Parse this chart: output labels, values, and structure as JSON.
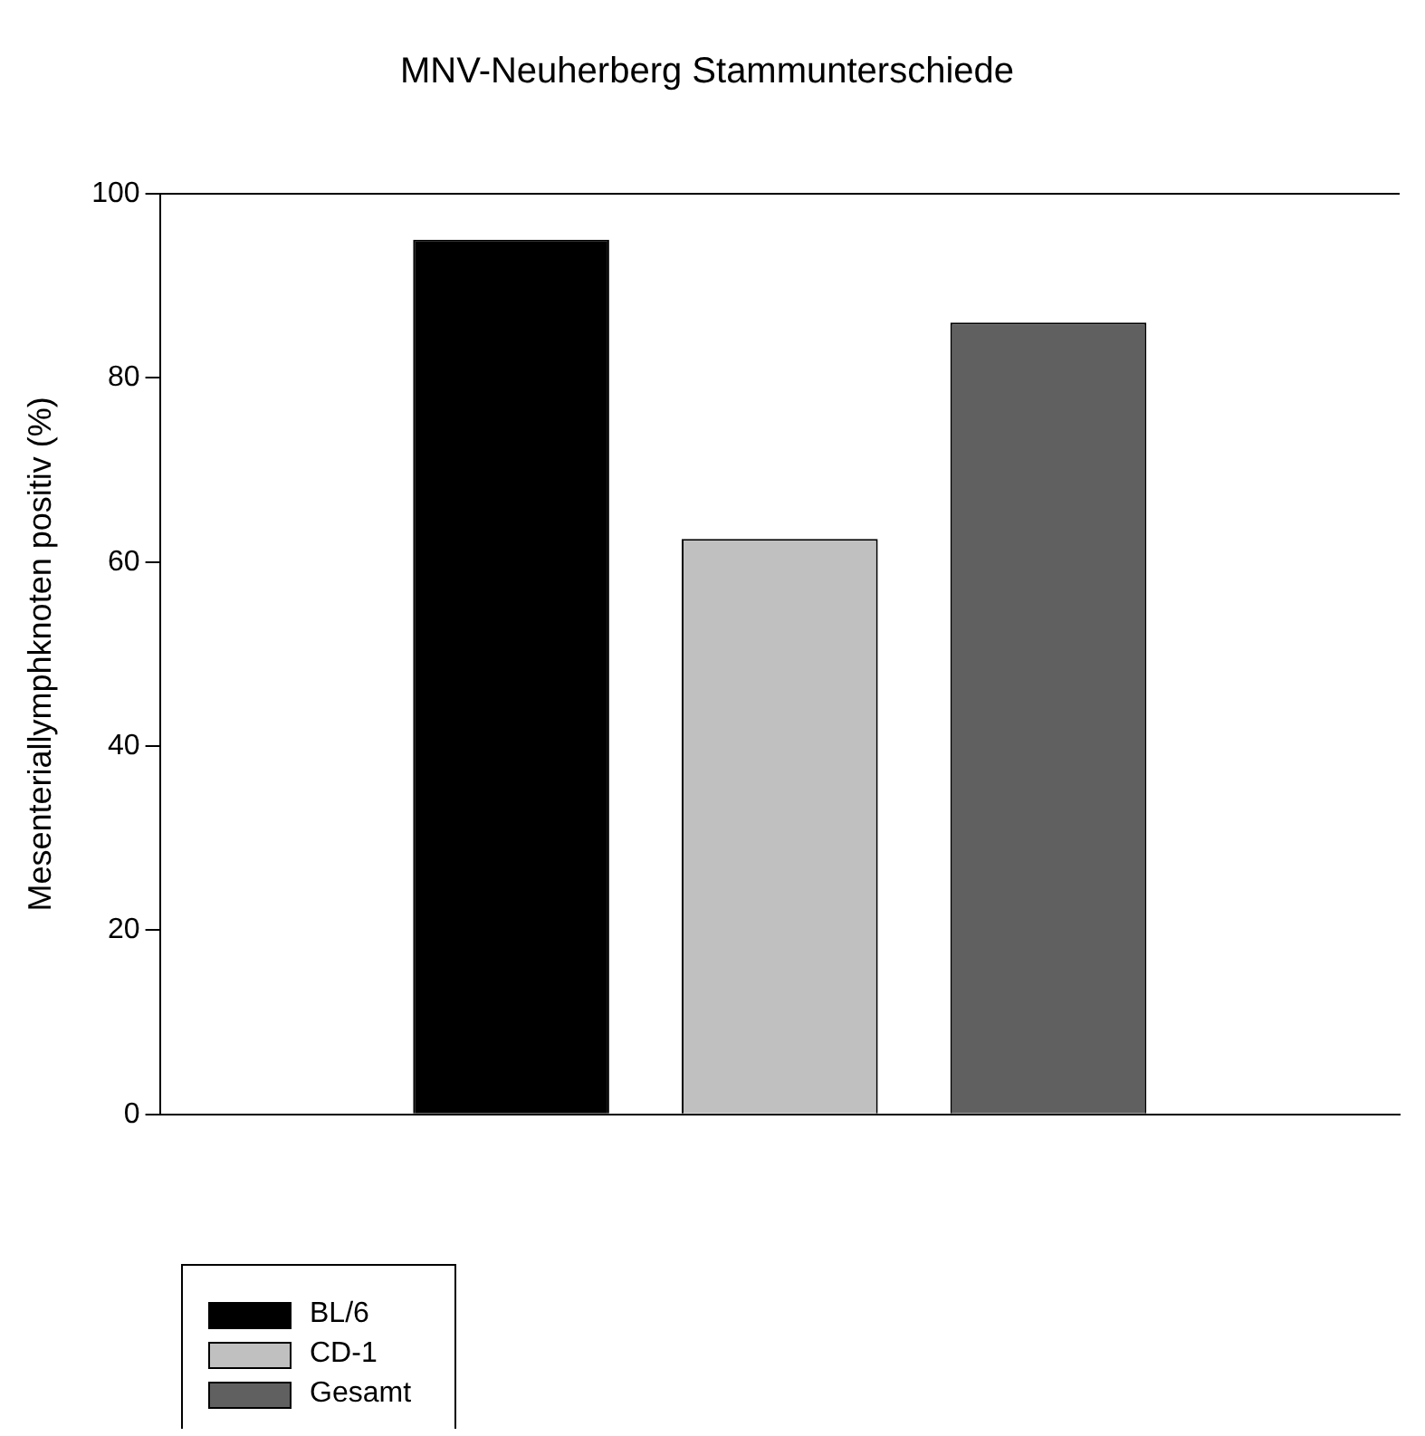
{
  "chart_data": {
    "type": "bar",
    "title": "MNV-Neuherberg Stammunterschiede",
    "ylabel": "Mesenteriallymphknoten positiv (%)",
    "categories": [
      null
    ],
    "series": [
      {
        "name": "BL/6",
        "color": "#000000",
        "values": [
          95
        ]
      },
      {
        "name": "CD-1",
        "color": "#c0c0c0",
        "values": [
          62.5
        ]
      },
      {
        "name": "Gesamt",
        "color": "#606060",
        "values": [
          86
        ]
      }
    ],
    "ylim": [
      0,
      100
    ],
    "yticks": [
      0,
      20,
      40,
      60,
      80,
      100
    ],
    "grid": false,
    "legend": "bottom left"
  }
}
